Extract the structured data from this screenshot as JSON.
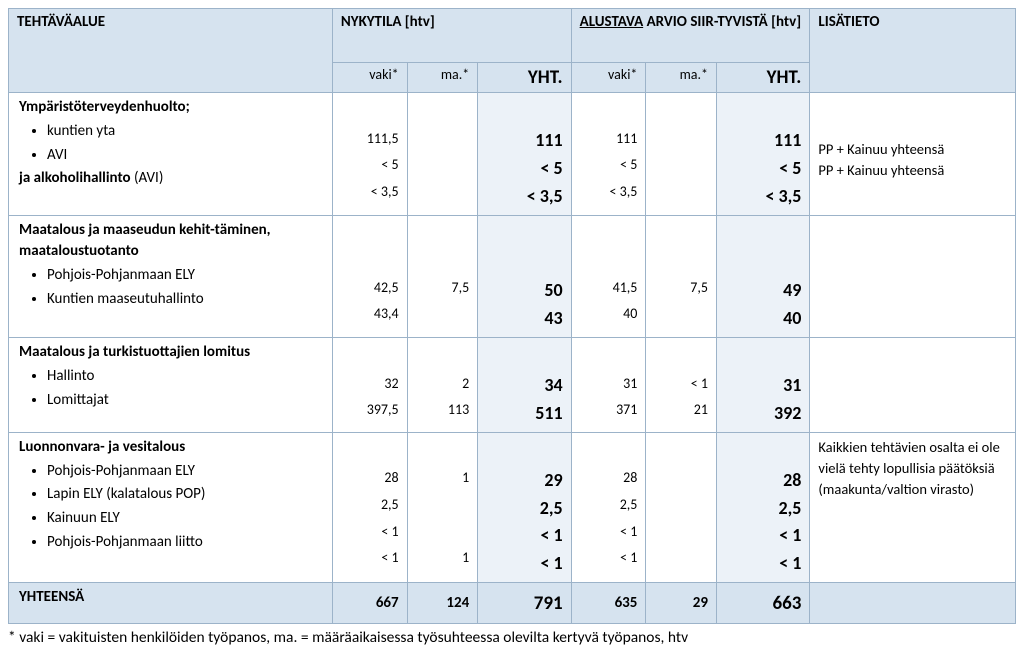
{
  "headers": {
    "task": "TEHTÄVÄALUE",
    "current": "NYKYTILA [htv]",
    "estimate_prefix": "ALUSTAVA",
    "estimate_rest": " ARVIO SIIR-TYVISTÄ [htv]",
    "info": "LISÄTIETO",
    "vaki": "vaki*",
    "ma": "ma.*",
    "yht": "YHT."
  },
  "rows": [
    {
      "task_html": "<b>Ympäristöterveydenhuolto;</b><ul class='bul'><li>kuntien yta</li><li>AVI</li></ul><b>ja alkoholihallinto</b> (AVI)",
      "c_vaki": "\n111,5\n< 5\n< 3,5",
      "c_ma": "",
      "c_yht": "\n111\n< 5\n< 3,5",
      "e_vaki": "\n111\n< 5\n< 3,5",
      "e_ma": "",
      "e_yht": "\n111\n< 5\n< 3,5",
      "info": "\n\nPP + Kainuu yhteensä\nPP + Kainuu yhteensä"
    },
    {
      "task_html": "<b>Maatalous ja maaseudun kehit-täminen, maataloustuotanto</b><ul class='bul'><li>Pohjois-Pohjanmaan ELY</li><li>Kuntien maaseutuhallinto</li></ul>",
      "c_vaki": "\n\n42,5\n43,4",
      "c_ma": "\n\n7,5",
      "c_yht": "\n\n50\n43",
      "e_vaki": "\n\n41,5\n40",
      "e_ma": "\n\n7,5",
      "e_yht": "\n\n49\n40",
      "info": ""
    },
    {
      "task_html": "<b>Maatalous ja turkistuottajien lomitus</b><ul class='bul'><li>Hallinto</li><li>Lomittajat</li></ul>",
      "c_vaki": "\n32\n397,5",
      "c_ma": "\n2\n113",
      "c_yht": "\n34\n511",
      "e_vaki": "\n31\n371",
      "e_ma": "\n< 1\n21",
      "e_yht": "\n31\n392",
      "info": ""
    },
    {
      "task_html": "<b>Luonnonvara- ja vesitalous</b><ul class='bul'><li>Pohjois-Pohjanmaan ELY</li><li>Lapin ELY (kalatalous POP)</li><li>Kainuun ELY</li><li>Pohjois-Pohjanmaan liitto</li></ul>",
      "c_vaki": "\n28\n2,5\n< 1\n< 1",
      "c_ma": "\n1\n\n\n1",
      "c_yht": "\n29\n2,5\n< 1\n< 1",
      "e_vaki": "\n28\n2,5\n< 1\n< 1",
      "e_ma": "",
      "e_yht": "\n28\n2,5\n< 1\n< 1",
      "info": "Kaikkien tehtävien osalta ei ole vielä tehty lopullisia päätöksiä (maakunta/valtion virasto)"
    }
  ],
  "total": {
    "label": "YHTEENSÄ",
    "c_vaki": "667",
    "c_ma": "124",
    "c_yht": "791",
    "e_vaki": "635",
    "e_ma": "29",
    "e_yht": "663"
  },
  "footnote": "* vaki = vakituisten henkilöiden työpanos, ma. = määräaikaisessa työsuhteessa olevilta kertyvä työpanos, htv"
}
